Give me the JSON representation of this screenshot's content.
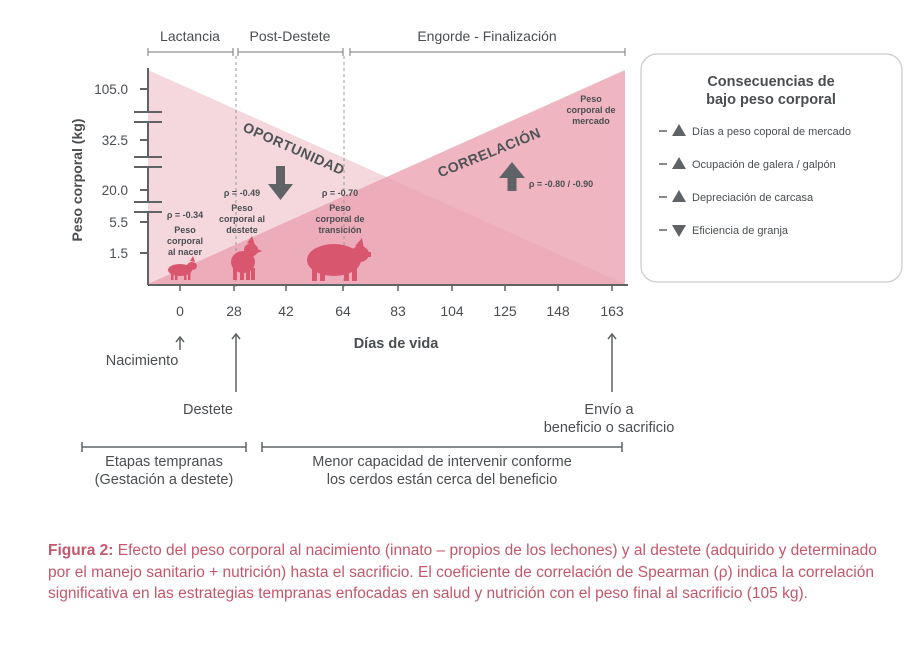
{
  "stages": [
    "Lactancia",
    "Post-Destete",
    "Engorde - Finalización"
  ],
  "y_axis": {
    "label": "Peso corporal (kg)",
    "ticks": [
      "105.0",
      "32.5",
      "20.0",
      "5.5",
      "1.5"
    ]
  },
  "x_axis": {
    "label": "Días de vida",
    "ticks": [
      "0",
      "28",
      "42",
      "64",
      "83",
      "104",
      "125",
      "148",
      "163"
    ]
  },
  "oportunidad_label": "OPORTUNIDAD",
  "correlacion_label": "CORRELACIÓN",
  "weights": [
    {
      "rho": "ρ = -0.34",
      "label": [
        "Peso",
        "corporal",
        "al nacer"
      ]
    },
    {
      "rho": "ρ = -0.49",
      "label": [
        "Peso",
        "corporal al",
        "destete"
      ]
    },
    {
      "rho": "ρ = -0.70",
      "label": [
        "Peso",
        "corporal de",
        "transición"
      ]
    },
    {
      "rho": "ρ = -0.80 / -0.90",
      "label": [
        "Peso",
        "corporal de",
        "mercado"
      ]
    }
  ],
  "events": {
    "nacimiento": "Nacimiento",
    "destete": "Destete",
    "envio": [
      "Envío a",
      "beneficio o sacrificio"
    ]
  },
  "bottom_ranges": {
    "left": [
      "Etapas tempranas",
      "(Gestación a destete)"
    ],
    "right": [
      "Menor capacidad de intervenir conforme",
      "los cerdos están cerca del beneficio"
    ]
  },
  "legend": {
    "title": [
      "Consecuencias de",
      "bajo peso corporal"
    ],
    "items": [
      {
        "direction": "up",
        "icon": "triangle-up-icon",
        "text": "Días a peso coporal de mercado"
      },
      {
        "direction": "up",
        "icon": "triangle-up-icon",
        "text": "Ocupación de galera / galpón"
      },
      {
        "direction": "up",
        "icon": "triangle-up-icon",
        "text": "Depreciación de carcasa"
      },
      {
        "direction": "down",
        "icon": "triangle-down-icon",
        "text": "Eficiencia de granja"
      }
    ]
  },
  "caption": {
    "label": "Figura 2:",
    "text": "Efecto del peso corporal al nacimiento (innato – propios de los lechones) y al destete (adquirido y determinado por el manejo sanitario + nutrición) hasta el sacrificio. El coeficiente de correlación de Spearman (ρ) indica la correlación significativa en las estrategias tempranas enfocadas en salud y nutrición con el peso final al sacrificio (105 kg)."
  },
  "colors": {
    "pink_dark": "#d9566f",
    "pink_light": "#f4d3da",
    "pink_mid": "#eaa7b5",
    "gray": "#5f6366",
    "caption": "#c4576b"
  }
}
